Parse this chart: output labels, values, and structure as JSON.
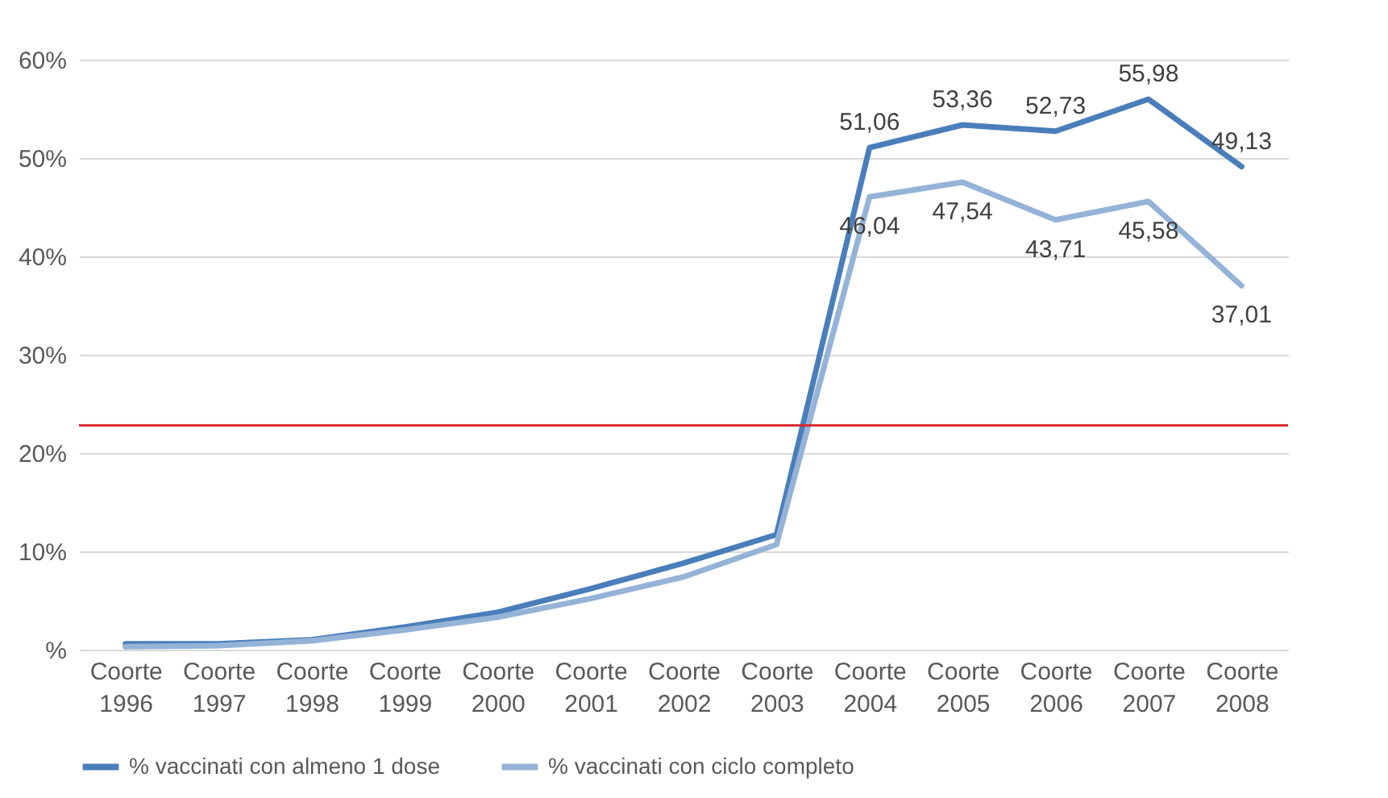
{
  "chart_data": {
    "type": "line",
    "categories": [
      "Coorte 1996",
      "Coorte 1997",
      "Coorte 1998",
      "Coorte 1999",
      "Coorte 2000",
      "Coorte 2001",
      "Coorte 2002",
      "Coorte 2003",
      "Coorte 2004",
      "Coorte 2005",
      "Coorte 2006",
      "Coorte 2007",
      "Coorte 2008"
    ],
    "series": [
      {
        "name": "% vaccinati con almeno 1 dose",
        "color": "#4a7ebb",
        "values": [
          0.6,
          0.6,
          1.0,
          2.3,
          3.8,
          6.2,
          8.8,
          11.7,
          51.06,
          53.36,
          52.73,
          55.98,
          49.13
        ],
        "value_labels": [
          null,
          null,
          null,
          null,
          null,
          null,
          null,
          null,
          "51,06",
          "53,36",
          "52,73",
          "55,98",
          "49,13"
        ]
      },
      {
        "name": "% vaccinati con ciclo completo",
        "color": "#95b3d7",
        "values": [
          0.3,
          0.4,
          0.9,
          2.0,
          3.3,
          5.2,
          7.4,
          10.7,
          46.04,
          47.54,
          43.71,
          45.58,
          37.01
        ],
        "value_labels": [
          null,
          null,
          null,
          null,
          null,
          null,
          null,
          null,
          "46,04",
          "47,54",
          "43,71",
          "45,58",
          "37,01"
        ]
      }
    ],
    "ylim": [
      0,
      60
    ],
    "yticks": [
      {
        "value": 0,
        "label": "%"
      },
      {
        "value": 10,
        "label": "10%"
      },
      {
        "value": 20,
        "label": "20%"
      },
      {
        "value": 30,
        "label": "30%"
      },
      {
        "value": 40,
        "label": "40%"
      },
      {
        "value": 50,
        "label": "50%"
      },
      {
        "value": 60,
        "label": "60%"
      }
    ],
    "ref_lines": [
      {
        "axis": "y",
        "value": 22.8,
        "color": "#d9262c"
      }
    ],
    "grid": "y",
    "legend": "bottom",
    "marker": "none",
    "line_style": "solid"
  }
}
